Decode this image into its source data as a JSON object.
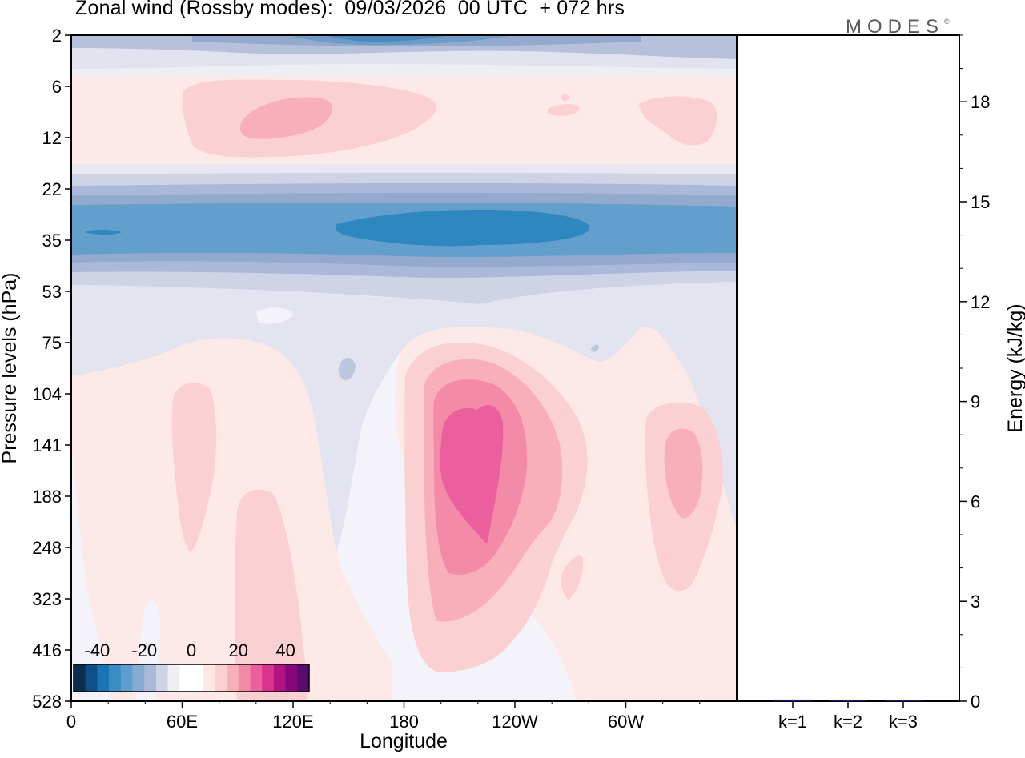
{
  "title": "Zonal wind (Rossby modes):  09/03/2026  00 UTC  + 072 hrs",
  "logo": "MODES",
  "logo_mark": "©",
  "chart_data": [
    {
      "type": "heatmap",
      "xlabel": "Longitude",
      "ylabel": "Pressure levels (hPa)",
      "x_ticks": [
        "0",
        "60E",
        "120E",
        "180",
        "120W",
        "60W"
      ],
      "x_tick_lon": [
        0,
        60,
        120,
        180,
        240,
        300
      ],
      "x_range": [
        0,
        360
      ],
      "y_ticks": [
        "2",
        "6",
        "12",
        "22",
        "35",
        "53",
        "75",
        "104",
        "141",
        "188",
        "248",
        "323",
        "416",
        "528"
      ],
      "colorbar": {
        "labels": [
          "-40",
          "-20",
          "0",
          "20",
          "40"
        ],
        "label_values": [
          -40,
          -20,
          0,
          20,
          40
        ],
        "range": [
          -50,
          50
        ],
        "colors": [
          "#0b2e4f",
          "#0d4f86",
          "#1a74b4",
          "#3a8dc3",
          "#5d9ecf",
          "#86acd1",
          "#aab9d9",
          "#cfd3e6",
          "#eeeef5",
          "#ffffff",
          "#ffffff",
          "#fde8e6",
          "#fbd0d2",
          "#f8afba",
          "#f38aa8",
          "#ec5f9d",
          "#d8338c",
          "#b11482",
          "#87077a",
          "#580a6e"
        ]
      },
      "grid": false
    },
    {
      "type": "bar",
      "categories": [
        "k=1",
        "k=2",
        "k=3"
      ],
      "values": [
        0.05,
        0.04,
        0.03
      ],
      "ylabel": "Energy (kJ/kg)",
      "y_ticks": [
        "0",
        "3",
        "6",
        "9",
        "12",
        "15",
        "18"
      ],
      "ylim": [
        0,
        20
      ],
      "bar_color": "#1a1a6e"
    }
  ]
}
